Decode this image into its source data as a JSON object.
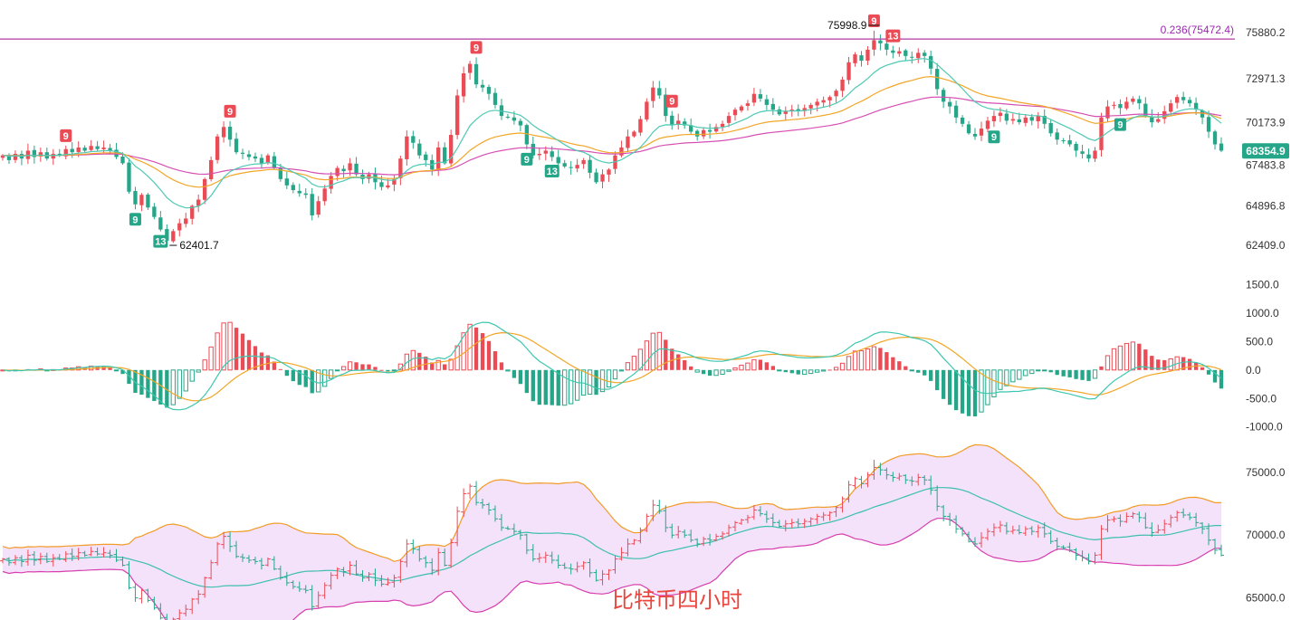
{
  "watermark": "比特币四小时",
  "colors": {
    "up": "#ea4b55",
    "down": "#26a689",
    "ma_fast": "#4fc9b4",
    "ma_mid": "#f2a627",
    "ma_slow": "#d64fb3",
    "fib": "#b03aa3",
    "bb_upper": "#f29b26",
    "bb_lower": "#d63fae",
    "bb_mid": "#3cbfae",
    "bb_fill": "#f4e2fa",
    "macd_dif": "#3cc7ae",
    "macd_dea": "#f2a627",
    "current": "#26a689"
  },
  "chart_data": [
    {
      "type": "candlestick",
      "pane": "price",
      "y_axis_ticks": [
        "75880.2",
        "72971.3",
        "70173.9",
        "67483.8",
        "64896.8",
        "62409.0"
      ],
      "ylim": [
        61200,
        76800
      ],
      "fib_line": {
        "label": "0.236(75472.4)",
        "value": 75472.4
      },
      "current_price": {
        "label": "68354.9",
        "value": 68354.9
      },
      "annotations": [
        {
          "label": "75998.9",
          "value": 75998.9,
          "note": "high"
        },
        {
          "label": "62401.7",
          "value": 62401.7,
          "note": "low"
        }
      ],
      "td_markers": [
        {
          "label": "9",
          "kind": "up",
          "bar": 10
        },
        {
          "label": "9",
          "kind": "down",
          "bar": 21
        },
        {
          "label": "13",
          "kind": "down",
          "bar": 25
        },
        {
          "label": "9",
          "kind": "up",
          "bar": 36
        },
        {
          "label": "9",
          "kind": "up",
          "bar": 75
        },
        {
          "label": "9",
          "kind": "down",
          "bar": 83
        },
        {
          "label": "13",
          "kind": "down",
          "bar": 87
        },
        {
          "label": "9",
          "kind": "up",
          "bar": 106
        },
        {
          "label": "9",
          "kind": "up",
          "bar": 138
        },
        {
          "label": "13",
          "kind": "up",
          "bar": 141
        },
        {
          "label": "9",
          "kind": "down",
          "bar": 157
        },
        {
          "label": "9",
          "kind": "down",
          "bar": 177
        }
      ],
      "series_close": [
        68100,
        67800,
        68200,
        67900,
        68400,
        68000,
        68300,
        67900,
        68200,
        68100,
        68500,
        68300,
        68600,
        68400,
        68700,
        68500,
        68600,
        68400,
        68000,
        67600,
        65800,
        65000,
        65600,
        64800,
        64200,
        63400,
        62700,
        63300,
        63800,
        64100,
        64900,
        65300,
        66600,
        67800,
        69300,
        69900,
        69100,
        68300,
        68200,
        68000,
        67900,
        67600,
        68100,
        67300,
        66600,
        66200,
        65900,
        65700,
        65600,
        64300,
        65200,
        66000,
        66800,
        67300,
        67100,
        67600,
        66900,
        66600,
        66900,
        66400,
        66100,
        66200,
        66600,
        67900,
        69300,
        68900,
        68100,
        67800,
        67200,
        68600,
        67600,
        69400,
        71900,
        73300,
        73900,
        72600,
        72400,
        72000,
        71300,
        70600,
        70500,
        70300,
        70000,
        68800,
        68100,
        68200,
        68400,
        68000,
        67600,
        67400,
        67300,
        67500,
        67800,
        67000,
        66400,
        66900,
        67200,
        68100,
        68600,
        69300,
        69600,
        70400,
        71500,
        72400,
        71900,
        70600,
        70000,
        70300,
        70000,
        69600,
        69300,
        69700,
        69600,
        69900,
        70100,
        70600,
        71000,
        71200,
        71400,
        72000,
        71700,
        71300,
        71000,
        70700,
        70900,
        71000,
        70900,
        71100,
        71300,
        71500,
        71600,
        71800,
        72200,
        72900,
        74000,
        74500,
        74100,
        74800,
        75400,
        75200,
        74800,
        74600,
        74700,
        74400,
        74300,
        74600,
        74400,
        73600,
        72300,
        71500,
        71200,
        70500,
        70100,
        69500,
        69300,
        69800,
        70300,
        70600,
        70800,
        70300,
        70400,
        70200,
        70500,
        70300,
        70600,
        70100,
        69500,
        69100,
        69000,
        68800,
        68400,
        68200,
        67900,
        68400,
        70500,
        71200,
        71300,
        71100,
        71500,
        71700,
        71400,
        70600,
        70200,
        70400,
        70900,
        71400,
        71800,
        71600,
        71400,
        71000,
        70500,
        69600,
        68800,
        68400
      ]
    },
    {
      "type": "bar",
      "pane": "macd",
      "y_axis_ticks": [
        "1500.0",
        "1000.0",
        "500.0",
        "0.0",
        "-500.0",
        "-1000.0"
      ],
      "ylim": [
        -1100,
        1650
      ]
    },
    {
      "type": "line",
      "pane": "bollinger",
      "y_axis_ticks": [
        "75000.0",
        "70000.0",
        "65000.0"
      ],
      "ylim": [
        63600,
        77300
      ]
    }
  ]
}
